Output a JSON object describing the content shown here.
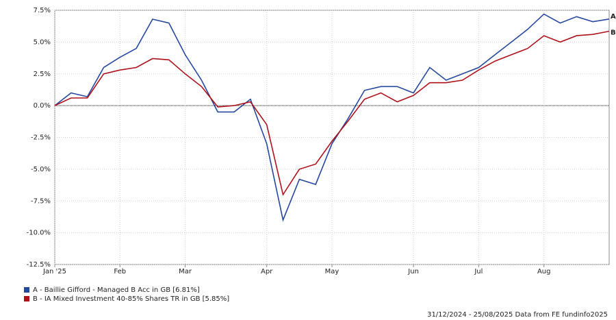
{
  "chart_data": {
    "type": "line",
    "categories": [
      "Jan '25",
      null,
      null,
      null,
      "Feb",
      null,
      null,
      null,
      "Mar",
      null,
      null,
      null,
      null,
      "Apr",
      null,
      null,
      null,
      "May",
      null,
      null,
      null,
      null,
      "Jun",
      null,
      null,
      null,
      "Jul",
      null,
      null,
      null,
      "Aug",
      null,
      null,
      null,
      null
    ],
    "series": [
      {
        "name": "A - Baillie Gifford - Managed B Acc in GB [6.81%]",
        "label": "A",
        "color": "#2447a0",
        "values": [
          0,
          1.0,
          0.7,
          3.0,
          3.8,
          4.5,
          6.8,
          6.5,
          4.0,
          2.0,
          -0.5,
          -0.5,
          0.5,
          -3.0,
          -9.0,
          -5.8,
          -6.2,
          -3.0,
          -1.0,
          1.2,
          1.5,
          1.5,
          1.0,
          3.0,
          2.0,
          2.5,
          3.0,
          4.0,
          5.0,
          6.0,
          7.2,
          6.5,
          7.0,
          6.6,
          6.81
        ]
      },
      {
        "name": "B - IA Mixed Investment 40-85% Shares TR in GB [5.85%]",
        "label": "B",
        "color": "#b0101a",
        "values": [
          0,
          0.6,
          0.6,
          2.5,
          2.8,
          3.0,
          3.7,
          3.6,
          2.5,
          1.5,
          -0.1,
          0,
          0.3,
          -1.5,
          -7.0,
          -5.0,
          -4.6,
          -2.8,
          -1.2,
          0.5,
          1.0,
          0.3,
          0.8,
          1.8,
          1.8,
          2.0,
          2.8,
          3.5,
          4.0,
          4.5,
          5.5,
          5.0,
          5.5,
          5.6,
          5.85
        ]
      }
    ],
    "ylim": [
      -12.5,
      7.5
    ],
    "yticks": [
      {
        "value": -12.5,
        "label": "-12.5%"
      },
      {
        "value": -10,
        "label": "-10.0%"
      },
      {
        "value": -7.5,
        "label": "-7.5%"
      },
      {
        "value": -5,
        "label": "-5.0%"
      },
      {
        "value": -2.5,
        "label": "-2.5%"
      },
      {
        "value": 0,
        "label": "0.0%"
      },
      {
        "value": 2.5,
        "label": "2.5%"
      },
      {
        "value": 5,
        "label": "5.0%"
      },
      {
        "value": 7.5,
        "label": "7.5%"
      }
    ],
    "grid": true,
    "footer": "31/12/2024 - 25/08/2025 Data from FE fundinfo2025"
  }
}
